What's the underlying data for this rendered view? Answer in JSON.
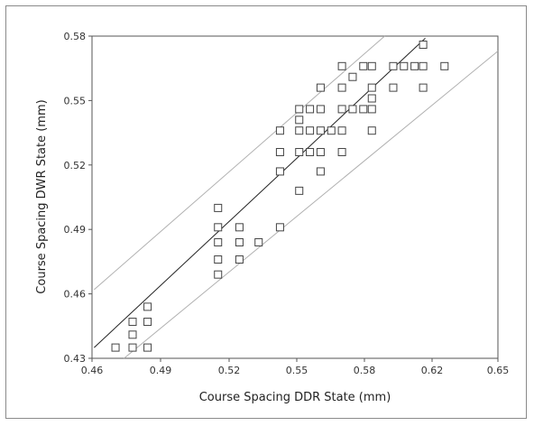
{
  "chart_data": {
    "type": "scatter",
    "xlabel": "Course Spacing DDR State (mm)",
    "ylabel": "Course Spacing DWR State (mm)",
    "xlim": [
      0.46,
      0.65
    ],
    "ylim": [
      0.43,
      0.58
    ],
    "xticks": [
      "0.46",
      "0.49",
      "0.52",
      "0.55",
      "0.58",
      "0.62",
      "0.65"
    ],
    "yticks": [
      "0.43",
      "0.46",
      "0.49",
      "0.52",
      "0.55",
      "0.58"
    ],
    "grid": false,
    "points": [
      [
        0.471,
        0.435
      ],
      [
        0.479,
        0.435
      ],
      [
        0.479,
        0.441
      ],
      [
        0.479,
        0.447
      ],
      [
        0.486,
        0.435
      ],
      [
        0.486,
        0.447
      ],
      [
        0.486,
        0.454
      ],
      [
        0.519,
        0.469
      ],
      [
        0.519,
        0.476
      ],
      [
        0.519,
        0.484
      ],
      [
        0.519,
        0.491
      ],
      [
        0.519,
        0.5
      ],
      [
        0.529,
        0.476
      ],
      [
        0.529,
        0.484
      ],
      [
        0.529,
        0.491
      ],
      [
        0.538,
        0.484
      ],
      [
        0.548,
        0.491
      ],
      [
        0.548,
        0.517
      ],
      [
        0.548,
        0.526
      ],
      [
        0.548,
        0.536
      ],
      [
        0.557,
        0.508
      ],
      [
        0.557,
        0.526
      ],
      [
        0.557,
        0.536
      ],
      [
        0.557,
        0.541
      ],
      [
        0.557,
        0.546
      ],
      [
        0.562,
        0.526
      ],
      [
        0.562,
        0.536
      ],
      [
        0.562,
        0.546
      ],
      [
        0.567,
        0.517
      ],
      [
        0.567,
        0.526
      ],
      [
        0.567,
        0.536
      ],
      [
        0.567,
        0.546
      ],
      [
        0.567,
        0.556
      ],
      [
        0.572,
        0.536
      ],
      [
        0.577,
        0.526
      ],
      [
        0.577,
        0.536
      ],
      [
        0.577,
        0.546
      ],
      [
        0.577,
        0.556
      ],
      [
        0.577,
        0.566
      ],
      [
        0.582,
        0.546
      ],
      [
        0.582,
        0.561
      ],
      [
        0.587,
        0.546
      ],
      [
        0.587,
        0.566
      ],
      [
        0.591,
        0.536
      ],
      [
        0.591,
        0.546
      ],
      [
        0.591,
        0.551
      ],
      [
        0.591,
        0.556
      ],
      [
        0.591,
        0.566
      ],
      [
        0.601,
        0.556
      ],
      [
        0.601,
        0.566
      ],
      [
        0.606,
        0.566
      ],
      [
        0.611,
        0.566
      ],
      [
        0.615,
        0.556
      ],
      [
        0.615,
        0.566
      ],
      [
        0.615,
        0.576
      ],
      [
        0.625,
        0.566
      ]
    ],
    "fit_line": {
      "x": [
        0.461,
        0.616
      ],
      "y": [
        0.435,
        0.579
      ]
    },
    "prediction_upper": {
      "x": [
        0.461,
        0.597
      ],
      "y": [
        0.462,
        0.58
      ]
    },
    "prediction_lower": {
      "x": [
        0.475,
        0.65
      ],
      "y": [
        0.43,
        0.573
      ]
    },
    "colors": {
      "points": "#444444",
      "fit": "#222222",
      "bands": "#b0b0b0",
      "axes": "#555555"
    }
  }
}
